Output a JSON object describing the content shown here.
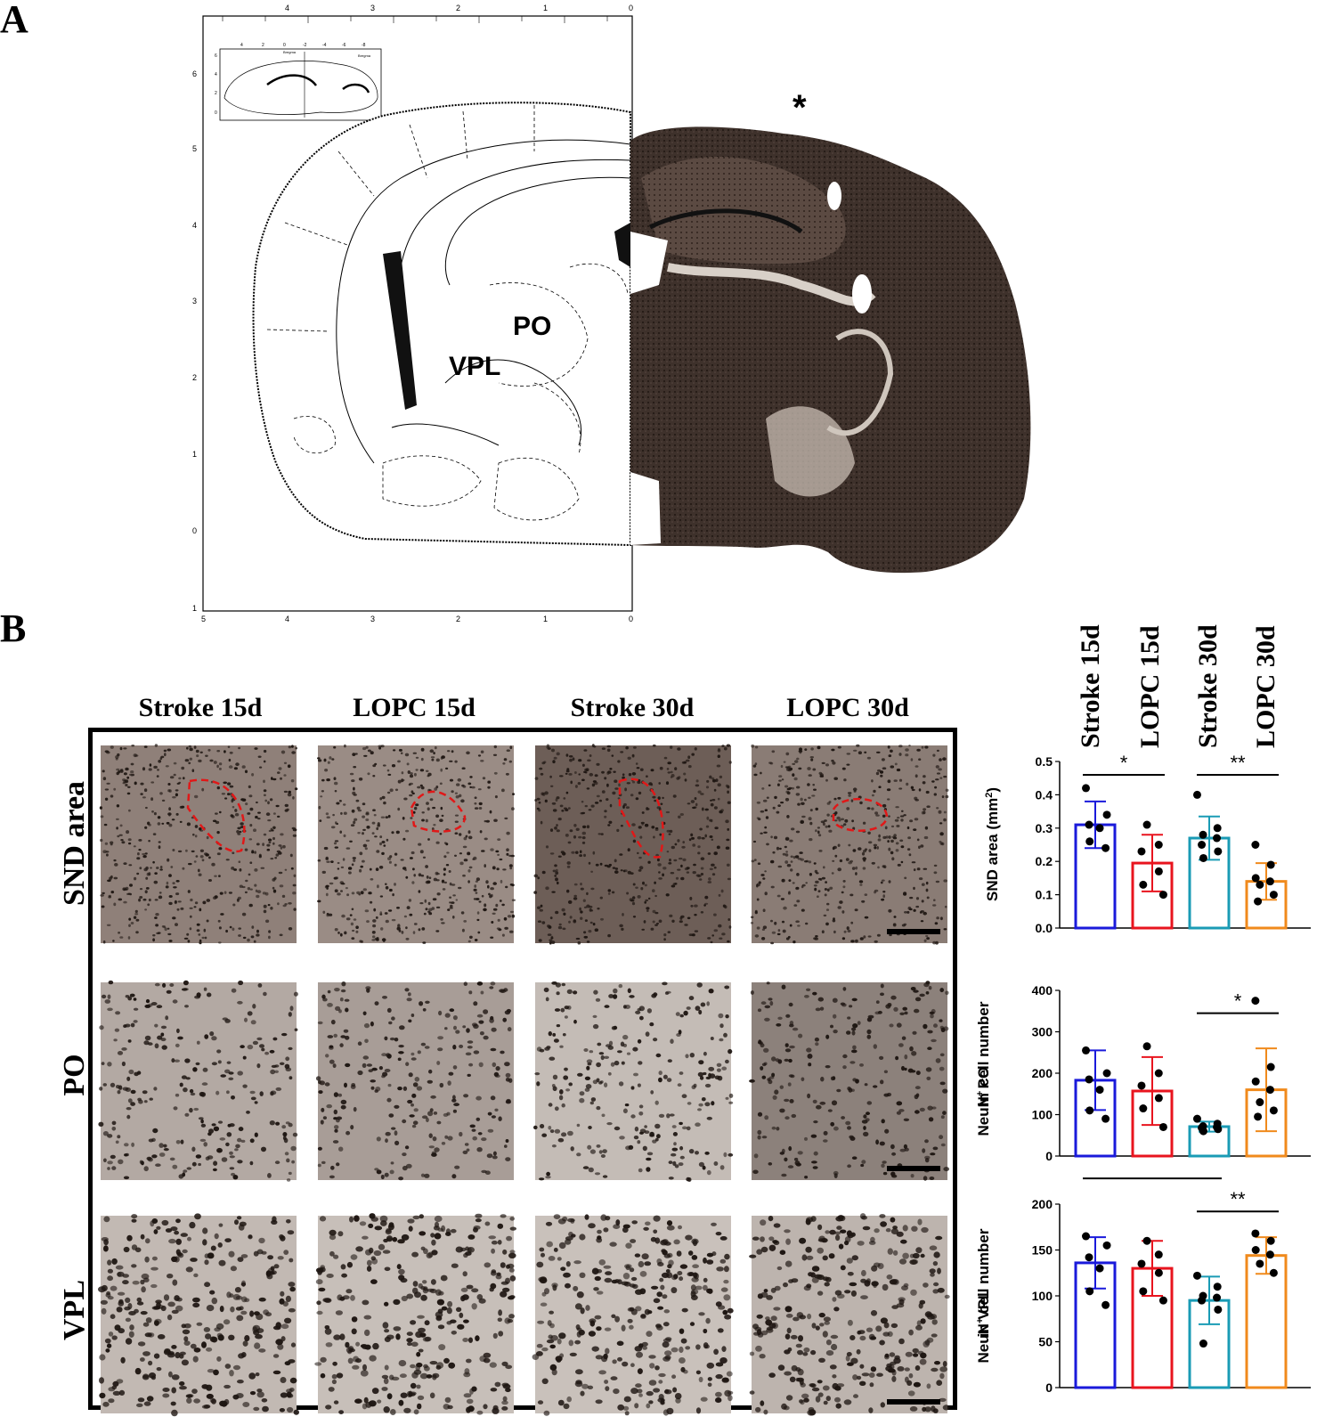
{
  "panel_a": {
    "letter": "A",
    "atlas_labels": {
      "po": "PO",
      "vpl": "VPL"
    },
    "lesion_marker": "*",
    "atlas_axis_top": [
      "4",
      "3",
      "2",
      "1",
      "0"
    ],
    "atlas_axis_bottom": [
      "5",
      "4",
      "3",
      "2",
      "1",
      "0"
    ],
    "atlas_axis_left": [
      "6",
      "5",
      "4",
      "3",
      "2",
      "1",
      "0",
      "1"
    ],
    "inset_axis_top": [
      "4",
      "2",
      "0",
      "-2",
      "-4",
      "-6",
      "-8"
    ],
    "inset_axis_left": [
      "6",
      "4",
      "2",
      "0"
    ],
    "inset_labels": [
      "Bregma",
      "Bregma"
    ]
  },
  "panel_b": {
    "letter": "B",
    "columns": [
      "Stroke 15d",
      "LOPC 15d",
      "Stroke 30d",
      "LOPC 30d"
    ],
    "rows": [
      "SND area",
      "PO",
      "VPL"
    ],
    "group_headers": [
      "Stroke 15d",
      "LOPC 15d",
      "Stroke 30d",
      "LOPC 30d"
    ]
  },
  "colors": {
    "stroke15": "#1a1adb",
    "lopc15": "#e8141e",
    "stroke30": "#1a9bb5",
    "lopc30": "#f08a1c",
    "roi": "#e01818"
  },
  "chart_data": [
    {
      "type": "bar",
      "ylabel": "SND area (mm²)",
      "ylabel_main": "SND area (mm",
      "ylabel_sup": "2",
      "ylabel_tail": ")",
      "ylim": [
        0,
        0.5
      ],
      "yticks": [
        "0.0",
        "0.1",
        "0.2",
        "0.3",
        "0.4",
        "0.5"
      ],
      "yticks_values": [
        0,
        0.1,
        0.2,
        0.3,
        0.4,
        0.5
      ],
      "categories": [
        "Stroke 15d",
        "LOPC 15d",
        "Stroke 30d",
        "LOPC 30d"
      ],
      "values": [
        0.31,
        0.195,
        0.27,
        0.14
      ],
      "sd": [
        0.07,
        0.085,
        0.065,
        0.055
      ],
      "points": [
        [
          0.42,
          0.34,
          0.31,
          0.3,
          0.26,
          0.24
        ],
        [
          0.31,
          0.25,
          0.23,
          0.17,
          0.13,
          0.1
        ],
        [
          0.4,
          0.3,
          0.28,
          0.27,
          0.25,
          0.23,
          0.21
        ],
        [
          0.25,
          0.19,
          0.15,
          0.14,
          0.13,
          0.1,
          0.08
        ]
      ],
      "significance": [
        {
          "between": [
            0,
            1
          ],
          "label": "*",
          "y": 0.46
        },
        {
          "between": [
            2,
            3
          ],
          "label": "**",
          "y": 0.46
        }
      ]
    },
    {
      "type": "bar",
      "ylabel": "NeuN⁺ cell number in PO",
      "ylabel_line1_main": "NeuN",
      "ylabel_line1_sup": "+",
      "ylabel_line1_tail": " cell number",
      "ylabel_line2": "in PO",
      "ylim": [
        0,
        400
      ],
      "yticks": [
        "0",
        "100",
        "200",
        "300",
        "400"
      ],
      "yticks_values": [
        0,
        100,
        200,
        300,
        400
      ],
      "categories": [
        "Stroke 15d",
        "LOPC 15d",
        "Stroke 30d",
        "LOPC 30d"
      ],
      "values": [
        183,
        157,
        71,
        160
      ],
      "sd": [
        72,
        82,
        12,
        100
      ],
      "points": [
        [
          255,
          200,
          185,
          160,
          110,
          90
        ],
        [
          265,
          200,
          170,
          140,
          115,
          70
        ],
        [
          90,
          78,
          72,
          70,
          68,
          65,
          60
        ],
        [
          375,
          215,
          180,
          160,
          130,
          110,
          95
        ]
      ],
      "significance": [
        {
          "between": [
            2,
            3
          ],
          "label": "*",
          "y": 345
        }
      ]
    },
    {
      "type": "bar",
      "ylabel": "NeuN⁺ cell number in VPL",
      "ylabel_line1_main": "NeuN",
      "ylabel_line1_sup": "+",
      "ylabel_line1_tail": " cell number",
      "ylabel_line2": "in VPL",
      "ylim": [
        0,
        200
      ],
      "yticks": [
        "0",
        "50",
        "100",
        "150",
        "200"
      ],
      "yticks_values": [
        0,
        50,
        100,
        150,
        200
      ],
      "categories": [
        "Stroke 15d",
        "LOPC 15d",
        "Stroke 30d",
        "LOPC 30d"
      ],
      "values": [
        136,
        130,
        95,
        144
      ],
      "sd": [
        28,
        30,
        26,
        20
      ],
      "points": [
        [
          165,
          155,
          142,
          130,
          105,
          90
        ],
        [
          160,
          145,
          135,
          125,
          105,
          95
        ],
        [
          122,
          110,
          100,
          98,
          95,
          85,
          48
        ],
        [
          168,
          160,
          150,
          145,
          135,
          125
        ]
      ],
      "significance": [
        {
          "between": [
            0,
            2
          ],
          "label": "*",
          "y": 228
        },
        {
          "between": [
            2,
            3
          ],
          "label": "**",
          "y": 192
        }
      ]
    }
  ]
}
